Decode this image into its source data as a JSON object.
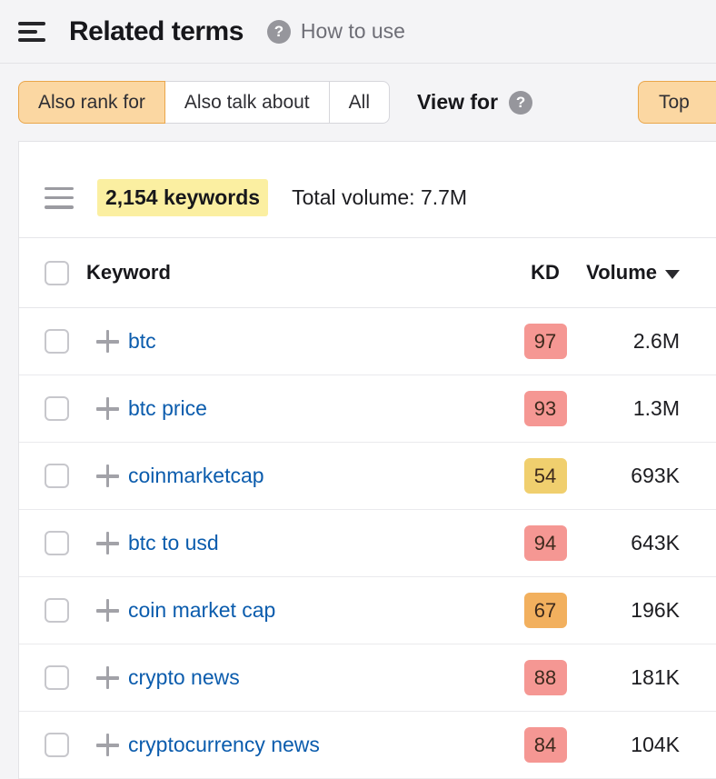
{
  "header": {
    "title": "Related terms",
    "help_label": "How to use"
  },
  "filters": {
    "tabs": [
      {
        "label": "Also rank for",
        "selected": true
      },
      {
        "label": "Also talk about",
        "selected": false
      },
      {
        "label": "All",
        "selected": false
      }
    ],
    "view_for_label": "View for",
    "top_button_label": "Top"
  },
  "toolbar": {
    "keywords_count": "2,154 keywords",
    "total_volume": "Total volume: 7.7M"
  },
  "table": {
    "headers": {
      "keyword": "Keyword",
      "kd": "KD",
      "volume": "Volume"
    },
    "sort": {
      "column": "volume",
      "direction": "desc"
    },
    "rows": [
      {
        "keyword": "btc",
        "kd": "97",
        "kd_level": "red",
        "volume": "2.6M"
      },
      {
        "keyword": "btc price",
        "kd": "93",
        "kd_level": "red",
        "volume": "1.3M"
      },
      {
        "keyword": "coinmarketcap",
        "kd": "54",
        "kd_level": "yellow",
        "volume": "693K"
      },
      {
        "keyword": "btc to usd",
        "kd": "94",
        "kd_level": "red",
        "volume": "643K"
      },
      {
        "keyword": "coin market cap",
        "kd": "67",
        "kd_level": "orange",
        "volume": "196K"
      },
      {
        "keyword": "crypto news",
        "kd": "88",
        "kd_level": "red",
        "volume": "181K"
      },
      {
        "keyword": "cryptocurrency news",
        "kd": "84",
        "kd_level": "red",
        "volume": "104K"
      }
    ]
  },
  "icons": {
    "menu": "hamburger-menu-icon",
    "help": "question-circle-icon",
    "list": "list-icon",
    "add": "plus-icon",
    "sort": "caret-down-icon"
  },
  "colors": {
    "selected_tab_bg": "#fbd7a2",
    "selected_tab_border": "#eaa64a",
    "link_blue": "#0b5cad",
    "highlight_yellow": "#fbefa1",
    "kd_red": "#f59793",
    "kd_orange": "#f2b05e",
    "kd_yellow": "#f0cf6e"
  }
}
